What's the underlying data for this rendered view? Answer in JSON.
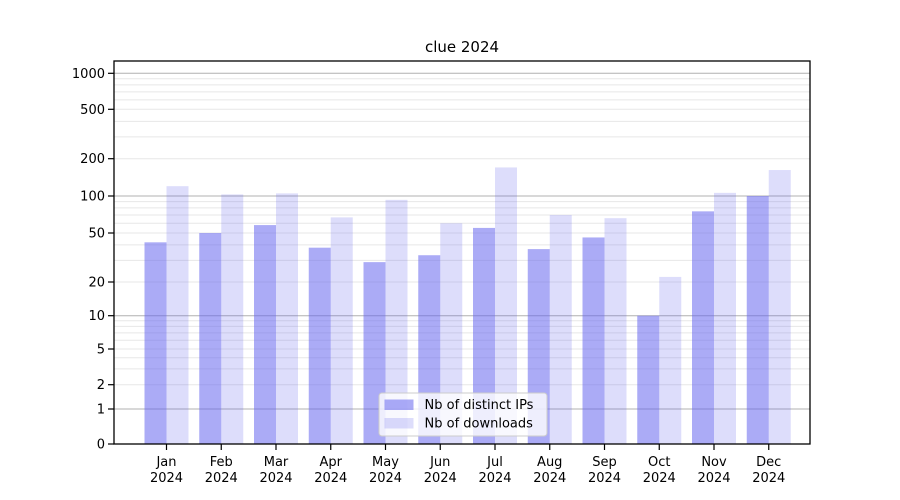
{
  "figure": {
    "background": "#ffffff"
  },
  "chart_data": {
    "type": "bar",
    "title": "clue 2024",
    "categories": [
      "Jan 2024",
      "Feb 2024",
      "Mar 2024",
      "Apr 2024",
      "May 2024",
      "Jun 2024",
      "Jul 2024",
      "Aug 2024",
      "Sep 2024",
      "Oct 2024",
      "Nov 2024",
      "Dec 2024"
    ],
    "series": [
      {
        "name": "Nb of distinct IPs",
        "values": [
          42,
          50,
          58,
          38,
          29,
          33,
          55,
          37,
          46,
          10,
          75,
          100
        ],
        "color_base": "#6666ee",
        "alpha": 0.55,
        "rendered_hex": "#a9a9f1"
      },
      {
        "name": "Nb of downloads",
        "values": [
          120,
          103,
          105,
          67,
          93,
          60,
          170,
          70,
          66,
          22,
          106,
          162
        ],
        "color_base": "#6666ee",
        "alpha": 0.22,
        "rendered_hex": "#dcdcf8"
      }
    ],
    "yticks": [
      0,
      1,
      2,
      5,
      10,
      20,
      50,
      100,
      200,
      500,
      1000
    ],
    "ytick_labels": [
      "0",
      "1",
      "2",
      "5",
      "10",
      "20",
      "50",
      "100",
      "200",
      "500",
      "1000"
    ],
    "ylim": [
      0,
      1300
    ],
    "yscale": "symlog-like: linear from 0 to 1, logarithmic above 1",
    "grid": {
      "enabled": true,
      "major_values": [
        1,
        10,
        100,
        1000
      ],
      "minor_values": [
        2,
        3,
        4,
        5,
        6,
        7,
        8,
        9,
        20,
        30,
        40,
        50,
        60,
        70,
        80,
        90,
        200,
        300,
        400,
        500,
        600,
        700,
        800,
        900
      ],
      "major_color": "#b0b0b0",
      "minor_color": "#e7e7e7"
    },
    "legend": {
      "position": "lower center",
      "entries": [
        "Nb of distinct IPs",
        "Nb of downloads"
      ],
      "border_color": "#cccccc",
      "background": "rgba(255,255,255,0.8)"
    },
    "spine_color": "#000000"
  }
}
